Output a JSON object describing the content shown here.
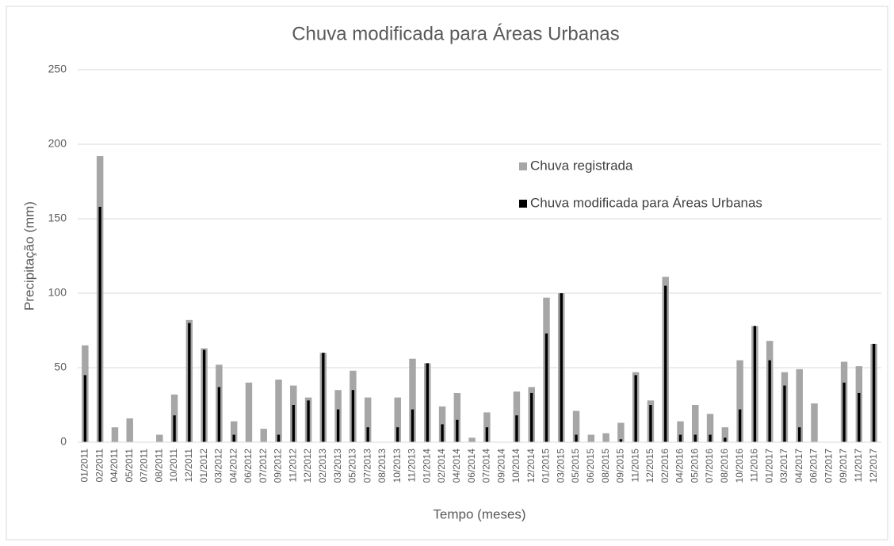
{
  "chart_data": {
    "type": "bar",
    "title": "Chuva modificada para Áreas Urbanas",
    "x_label": "Tempo (meses)",
    "y_label": "Precipitação (mm)",
    "categories": [
      "01/2011",
      "02/2011",
      "04/2011",
      "05/2011",
      "07/2011",
      "08/2011",
      "10/2011",
      "12/2011",
      "01/2012",
      "03/2012",
      "04/2012",
      "06/2012",
      "07/2012",
      "09/2012",
      "11/2012",
      "12/2012",
      "02/2013",
      "03/2013",
      "05/2013",
      "07/2013",
      "08/2013",
      "10/2013",
      "11/2013",
      "01/2014",
      "02/2014",
      "04/2014",
      "06/2014",
      "07/2014",
      "09/2014",
      "10/2014",
      "12/2014",
      "01/2015",
      "03/2015",
      "05/2015",
      "06/2015",
      "08/2015",
      "09/2015",
      "11/2015",
      "12/2015",
      "02/2016",
      "04/2016",
      "05/2016",
      "07/2016",
      "08/2016",
      "10/2016",
      "11/2016",
      "01/2017",
      "03/2017",
      "04/2017",
      "06/2017",
      "07/2017",
      "09/2017",
      "11/2017",
      "12/2017"
    ],
    "series": [
      {
        "name": "Chuva registrada",
        "color": "#a6a6a6",
        "values": [
          65,
          192,
          10,
          16,
          0,
          5,
          32,
          82,
          63,
          52,
          14,
          40,
          9,
          42,
          38,
          30,
          60,
          35,
          48,
          30,
          0,
          30,
          56,
          53,
          24,
          33,
          3,
          20,
          0,
          34,
          37,
          97,
          100,
          21,
          5,
          6,
          13,
          47,
          28,
          111,
          14,
          25,
          19,
          10,
          55,
          78,
          68,
          47,
          49,
          26,
          0,
          54,
          51,
          66
        ]
      },
      {
        "name": "Chuva modificada para Áreas Urbanas",
        "color": "#000000",
        "values": [
          45,
          158,
          0,
          0,
          0,
          0,
          18,
          80,
          62,
          37,
          5,
          0,
          0,
          5,
          25,
          28,
          60,
          22,
          35,
          10,
          0,
          10,
          22,
          53,
          12,
          15,
          0,
          10,
          0,
          18,
          33,
          73,
          100,
          5,
          0,
          0,
          2,
          45,
          25,
          105,
          5,
          5,
          5,
          3,
          22,
          78,
          55,
          38,
          10,
          0,
          0,
          40,
          33,
          66
        ]
      }
    ],
    "ylim": [
      0,
      250
    ],
    "yticks": [
      0,
      50,
      100,
      150,
      200,
      250
    ],
    "grid": true,
    "legend": "upper right"
  }
}
